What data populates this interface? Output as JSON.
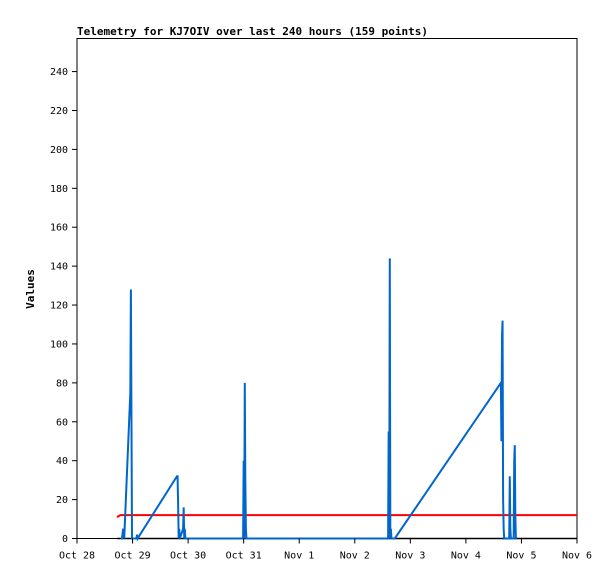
{
  "chart_data": {
    "type": "line",
    "title": "Telemetry for KJ7OIV over last 240 hours (159 points)",
    "xlabel": "",
    "ylabel": "Values",
    "ylim": [
      0,
      257
    ],
    "yticks": [
      0,
      20,
      40,
      60,
      80,
      100,
      120,
      140,
      160,
      180,
      200,
      220,
      240
    ],
    "xlim": [
      "Oct 28",
      "Nov 6"
    ],
    "xticks": [
      "Oct 28",
      "Oct 29",
      "Oct 30",
      "Oct 31",
      "Nov 1",
      "Nov 2",
      "Nov 3",
      "Nov 4",
      "Nov 5",
      "Nov 6"
    ],
    "grid": false,
    "series": [
      {
        "color": "#ff0000",
        "x": [
          0.72,
          0.78,
          9.0
        ],
        "y": [
          11,
          12,
          12
        ]
      },
      {
        "color": "#000000",
        "x": [
          0.72,
          9.0
        ],
        "y": [
          0,
          0
        ]
      },
      {
        "color": "#0066cc",
        "x": [
          0.79,
          0.81,
          0.83,
          0.85,
          0.96,
          0.97,
          0.98,
          0.99,
          1.0,
          1.07,
          1.08,
          1.09,
          1.8,
          1.81,
          1.82,
          1.83,
          1.84,
          1.85,
          1.91,
          1.92,
          1.93,
          1.94,
          1.95,
          1.97,
          1.98,
          2.99,
          3.0,
          3.01,
          3.02,
          3.03,
          3.04,
          3.05,
          3.07,
          3.08,
          5.6,
          5.61,
          5.62,
          5.63,
          5.64,
          5.65,
          5.66,
          5.67,
          5.7,
          5.72,
          7.63,
          7.64,
          7.65,
          7.66,
          7.67,
          7.68,
          7.69,
          7.7,
          7.78,
          7.79,
          7.8,
          7.81,
          7.86,
          7.87,
          7.88,
          7.89,
          7.9,
          7.91
        ],
        "y": [
          0,
          0,
          5,
          0,
          75,
          128,
          64,
          0,
          0,
          0,
          2,
          0,
          32,
          32,
          18,
          0,
          5,
          0,
          5,
          16,
          0,
          5,
          0,
          0,
          0,
          0,
          40,
          0,
          80,
          30,
          5,
          0,
          0,
          0,
          0,
          55,
          0,
          144,
          0,
          5,
          0,
          0,
          0,
          0,
          80,
          50,
          104,
          112,
          20,
          5,
          0,
          0,
          0,
          32,
          5,
          0,
          0,
          40,
          48,
          12,
          0,
          0
        ]
      }
    ]
  }
}
